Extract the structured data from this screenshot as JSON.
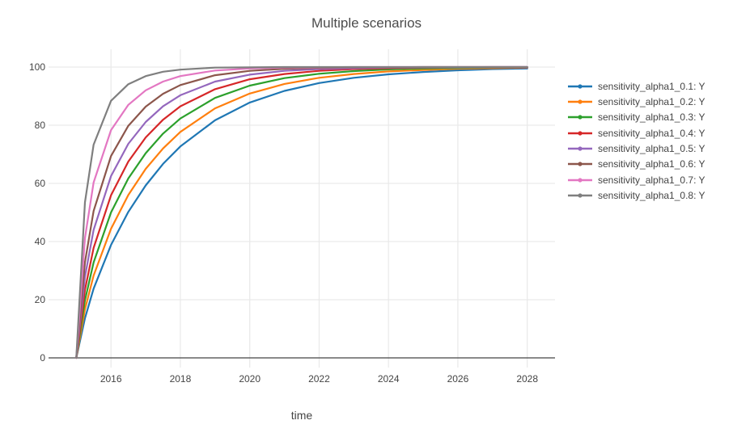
{
  "chart": {
    "title": "Multiple scenarios"
  },
  "chart_data": {
    "type": "line",
    "title": "Multiple scenarios",
    "xlabel": "time",
    "ylabel": "",
    "grid": true,
    "legend_position": "right",
    "x_range": [
      2014.2,
      2028.8
    ],
    "y_range": [
      -3.33,
      106.11
    ],
    "x_ticks": [
      2016,
      2018,
      2020,
      2022,
      2024,
      2026,
      2028
    ],
    "y_ticks": [
      0,
      20,
      40,
      60,
      80,
      100
    ],
    "x": [
      2015,
      2015.25,
      2015.5,
      2016,
      2016.5,
      2017,
      2017.5,
      2018,
      2019,
      2020,
      2021,
      2022,
      2023,
      2024,
      2025,
      2026,
      2027,
      2028
    ],
    "series": [
      {
        "name": "sensitivity_alpha1_0.1: Y",
        "color": "#1f77b4",
        "values": [
          0,
          13.6,
          23.8,
          38.8,
          50.2,
          59.3,
          66.7,
          72.7,
          81.7,
          87.8,
          91.8,
          94.5,
          96.3,
          97.5,
          98.3,
          98.9,
          99.3,
          99.5
        ]
      },
      {
        "name": "sensitivity_alpha1_0.2: Y",
        "color": "#ff7f0e",
        "values": [
          0,
          16.7,
          28.3,
          44.4,
          56.0,
          65.0,
          72.0,
          77.7,
          85.8,
          90.9,
          94.2,
          96.3,
          97.6,
          98.5,
          99.0,
          99.4,
          99.6,
          99.8
        ]
      },
      {
        "name": "sensitivity_alpha1_0.3: Y",
        "color": "#2ca02c",
        "values": [
          0,
          19.8,
          32.8,
          50.0,
          61.7,
          70.4,
          77.1,
          82.3,
          89.4,
          93.6,
          96.2,
          97.7,
          98.6,
          99.2,
          99.5,
          99.7,
          99.8,
          99.9
        ]
      },
      {
        "name": "sensitivity_alpha1_0.4: Y",
        "color": "#d62728",
        "values": [
          0,
          23.4,
          37.8,
          55.9,
          67.5,
          75.8,
          81.9,
          86.5,
          92.4,
          95.8,
          97.6,
          98.7,
          99.3,
          99.6,
          99.8,
          99.9,
          99.9,
          99.9
        ]
      },
      {
        "name": "sensitivity_alpha1_0.5: Y",
        "color": "#9467bd",
        "values": [
          0,
          27.9,
          44.0,
          62.5,
          73.6,
          81.1,
          86.5,
          90.3,
          95.0,
          97.4,
          98.7,
          99.3,
          99.6,
          99.8,
          99.9,
          99.9,
          100,
          100
        ]
      },
      {
        "name": "sensitivity_alpha1_0.6: Y",
        "color": "#8c564b",
        "values": [
          0,
          32.9,
          50.5,
          69.4,
          79.8,
          86.4,
          90.8,
          93.8,
          97.2,
          98.7,
          99.4,
          99.7,
          99.9,
          99.9,
          100,
          100,
          100,
          100
        ]
      },
      {
        "name": "sensitivity_alpha1_0.7: Y",
        "color": "#e377c2",
        "values": [
          0,
          41.2,
          60.3,
          78.3,
          87.0,
          92.0,
          95.0,
          96.9,
          98.8,
          99.5,
          99.8,
          99.9,
          100,
          100,
          100,
          100,
          100,
          100
        ]
      },
      {
        "name": "sensitivity_alpha1_0.8: Y",
        "color": "#7f7f7f",
        "values": [
          0,
          53.5,
          73.3,
          88.4,
          94.1,
          96.9,
          98.4,
          99.1,
          99.8,
          99.9,
          100,
          100,
          100,
          100,
          100,
          100,
          100,
          100
        ]
      }
    ]
  },
  "style": {
    "grid_color": "#e9e9e9",
    "zeroline_color": "#444444",
    "tick_color": "#444444",
    "title_color": "#4c4c4c",
    "background": "#ffffff",
    "line_width": 2.2
  }
}
